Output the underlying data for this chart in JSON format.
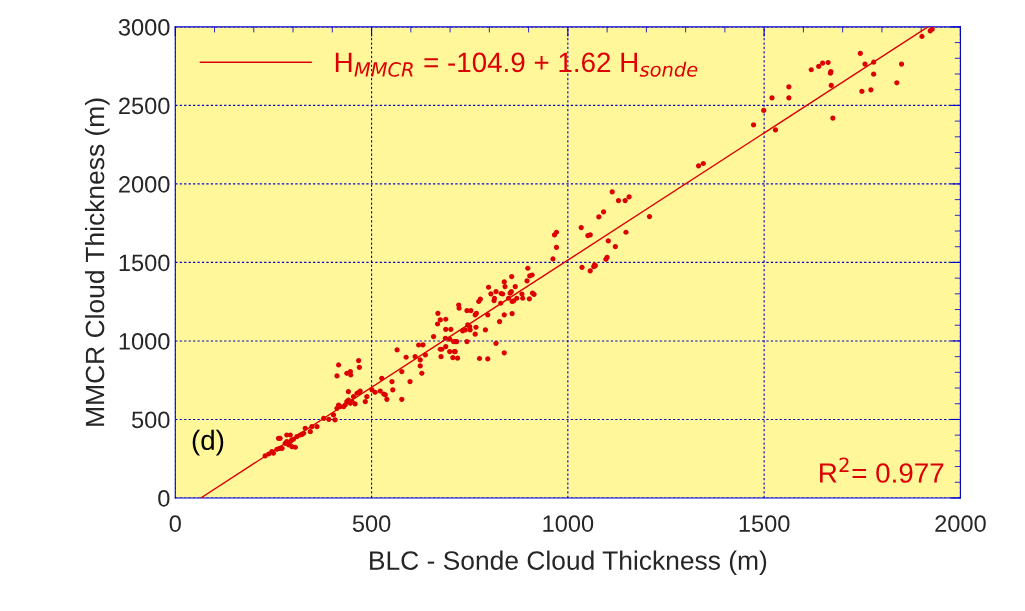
{
  "chart_data": {
    "type": "scatter",
    "xlabel": "BLC - Sonde Cloud Thickness (m)",
    "ylabel": "MMCR Cloud Thickness (m)",
    "xlim": [
      0,
      2000
    ],
    "ylim": [
      0,
      3000
    ],
    "xticks": [
      0,
      500,
      1000,
      1500,
      2000
    ],
    "yticks": [
      0,
      500,
      1000,
      1500,
      2000,
      2500,
      3000
    ],
    "grid": true,
    "legend": "top left",
    "annotations": [
      "(d)",
      "R$^{2}$= 0.977"
    ],
    "series": [
      {
        "marker": "circle",
        "color": "#dd0000",
        "x": [
          229,
          238,
          246,
          250,
          259,
          266,
          272,
          263,
          267,
          280,
          284,
          289,
          293,
          297,
          293,
          284,
          301,
          306,
          297,
          310,
          318,
          323,
          327,
          331,
          344,
          348,
          361,
          378,
          391,
          407,
          403,
          412,
          416,
          420,
          429,
          433,
          437,
          441,
          446,
          450,
          454,
          458,
          463,
          467,
          471,
          441,
          412,
          416,
          437,
          446,
          447,
          467,
          469,
          484,
          488,
          501,
          509,
          522,
          526,
          531,
          535,
          539,
          552,
          554,
          565,
          577,
          577,
          588,
          598,
          611,
          620,
          631,
          624,
          637,
          628,
          624,
          658,
          668,
          669,
          675,
          689,
          689,
          702,
          688,
          699,
          675,
          679,
          677,
          689,
          699,
          709,
          713,
          717,
          711,
          713,
          707,
          719,
          722,
          723,
          743,
          753,
          743,
          732,
          739,
          745,
          750,
          751,
          764,
          767,
          766,
          764,
          773,
          777,
          790,
          796,
          775,
          796,
          798,
          804,
          813,
          812,
          817,
          817,
          826,
          829,
          830,
          834,
          838,
          840,
          838,
          838,
          849,
          853,
          856,
          857,
          858,
          862,
          858,
          866,
          870,
          883,
          885,
          896,
          898,
          903,
          902,
          909,
          910,
          914,
          962,
          966,
          971,
          971,
          1034,
          1036,
          1051,
          1057,
          1057,
          1066,
          1068,
          1070,
          1079,
          1091,
          1097,
          1100,
          1103,
          1113,
          1121,
          1129,
          1146,
          1148,
          1156,
          1208,
          1333,
          1345,
          1473,
          1499,
          1529,
          1520,
          1563,
          1563,
          1620,
          1639,
          1649,
          1663,
          1669,
          1670,
          1671,
          1675,
          1745,
          1749,
          1757,
          1772,
          1779,
          1779,
          1838,
          1850,
          1902,
          1923,
          1928
        ],
        "values": [
          268,
          280,
          295,
          285,
          310,
          316,
          316,
          380,
          380,
          348,
          359,
          338,
          359,
          370,
          401,
          401,
          374,
          323,
          327,
          391,
          401,
          405,
          412,
          444,
          422,
          454,
          454,
          507,
          501,
          497,
          529,
          571,
          592,
          582,
          582,
          592,
          614,
          624,
          603,
          614,
          645,
          599,
          667,
          671,
          681,
          677,
          777,
          847,
          794,
          805,
          783,
          875,
          832,
          614,
          645,
          688,
          673,
          681,
          762,
          662,
          656,
          628,
          741,
          688,
          943,
          805,
          628,
          896,
          741,
          900,
          974,
          975,
          879,
          911,
          794,
          841,
          1028,
          1108,
          1176,
          1134,
          1138,
          1074,
          1074,
          1017,
          1011,
          947,
          947,
          900,
          964,
          932,
          996,
          996,
          996,
          932,
          932,
          894,
          890,
          1229,
          1208,
          1193,
          1193,
          996,
          1064,
          1070,
          1102,
          1091,
          1070,
          1166,
          1176,
          1087,
          1043,
          1251,
          1266,
          1070,
          1166,
          888,
          886,
          1342,
          1300,
          1272,
          1257,
          1314,
          985,
          1123,
          1240,
          1302,
          1299,
          1376,
          1346,
          1166,
          924,
          1272,
          1304,
          1314,
          1410,
          1251,
          1255,
          1174,
          1346,
          1272,
          1299,
          1272,
          1382,
          1463,
          1414,
          1268,
          1420,
          1304,
          1297,
          1522,
          1675,
          1692,
          1596,
          1722,
          1469,
          1671,
          1675,
          1446,
          1473,
          1484,
          1480,
          1790,
          1822,
          1520,
          1533,
          1637,
          1949,
          1601,
          1894,
          1894,
          1692,
          1917,
          1792,
          2115,
          2130,
          2376,
          2468,
          2344,
          2548,
          2548,
          2618,
          2727,
          2748,
          2769,
          2773,
          2705,
          2716,
          2627,
          2419,
          2831,
          2589,
          2763,
          2599,
          2775,
          2699,
          2644,
          2763,
          2939,
          2975,
          2985
        ]
      },
      {
        "type": "line",
        "name": "H$_{MMCR}$ = -104.9 + 1.62 H$_{sonde}$",
        "color": "#dd0000",
        "x": [
          65,
          1917
        ],
        "values": [
          0,
          3000
        ]
      }
    ]
  }
}
